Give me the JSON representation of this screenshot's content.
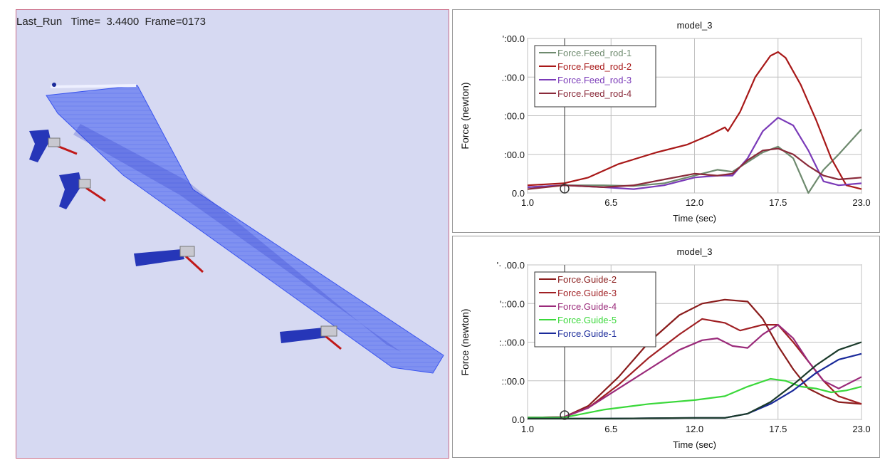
{
  "viewport": {
    "status": "Last_Run   Time=  3.4400  Frame=0173"
  },
  "colors": {
    "wing": "#3a55f0",
    "bracket": "#2636b8",
    "rod": "#c01818",
    "grid": "#c0c0c0"
  },
  "chart_data": [
    {
      "type": "line",
      "title": "model_3",
      "xlabel": "Time (sec)",
      "ylabel": "Force (newton)",
      "xlim": [
        1.0,
        23.0
      ],
      "ylim": [
        0.0,
        4000.0
      ],
      "x_ticks": [
        "1.0",
        "6.5",
        "12.0",
        "17.5",
        "23.0"
      ],
      "y_ticks": [
        "0.0",
        "1000.0",
        "2000.0",
        "3000.0",
        "4000.0"
      ],
      "y_tick_labels": [
        "0.0",
        ":00.0",
        ":00.0",
        ".:00.0",
        "':00.0"
      ],
      "grid": true,
      "legend": "top-left",
      "cursor_x": 3.44,
      "series": [
        {
          "name": "Force.Feed_rod-1",
          "color": "#6e8a6e",
          "x": [
            1,
            3.4,
            6,
            8,
            10,
            12,
            13.5,
            14.5,
            15.5,
            16.5,
            17.5,
            18.5,
            19.5,
            20.5,
            21.5,
            23
          ],
          "y": [
            150,
            200,
            200,
            180,
            250,
            450,
            600,
            550,
            800,
            1050,
            1200,
            900,
            0,
            600,
            1000,
            1650
          ]
        },
        {
          "name": "Force.Feed_rod-2",
          "color": "#a81818",
          "x": [
            1,
            3.4,
            5,
            7,
            9.5,
            11.5,
            13,
            14,
            14.2,
            15,
            16,
            17,
            17.5,
            18,
            19,
            20,
            21,
            22,
            23
          ],
          "y": [
            200,
            250,
            400,
            750,
            1050,
            1250,
            1500,
            1700,
            1600,
            2100,
            3000,
            3550,
            3650,
            3500,
            2800,
            1900,
            900,
            200,
            100
          ]
        },
        {
          "name": "Force.Feed_rod-3",
          "color": "#7a3ab8",
          "x": [
            1,
            3.4,
            6,
            8,
            10,
            12,
            13.5,
            14.5,
            15.5,
            16.5,
            17.5,
            18.5,
            19.5,
            20.5,
            21.5,
            23
          ],
          "y": [
            150,
            200,
            150,
            100,
            200,
            400,
            450,
            450,
            900,
            1600,
            1950,
            1750,
            1100,
            300,
            200,
            250
          ]
        },
        {
          "name": "Force.Feed_rod-4",
          "color": "#8a2a3a",
          "x": [
            1,
            3.4,
            6,
            8,
            10,
            12,
            13.5,
            14.5,
            15.5,
            16.5,
            17.5,
            18.5,
            19.5,
            20.5,
            21.5,
            23
          ],
          "y": [
            100,
            200,
            150,
            200,
            350,
            500,
            450,
            500,
            850,
            1100,
            1150,
            1000,
            700,
            450,
            350,
            400
          ]
        }
      ]
    },
    {
      "type": "line",
      "title": "model_3",
      "xlabel": "Time (sec)",
      "ylabel": "Force (newton)",
      "xlim": [
        1.0,
        23.0
      ],
      "ylim": [
        0.0,
        4000.0
      ],
      "x_ticks": [
        "1.0",
        "6.5",
        "12.0",
        "17.5",
        "23.0"
      ],
      "y_ticks": [
        "0.0",
        "1000.0",
        "2000.0",
        "3000.0",
        "4000.0"
      ],
      "y_tick_labels": [
        "0.0",
        "::00.0",
        ":.:00.0",
        "'::00.0",
        "'· .00.0"
      ],
      "grid": true,
      "legend": "top-left",
      "cursor_x": 3.44,
      "series": [
        {
          "name": "Force.Guide-2",
          "color": "#8a1c1c",
          "x": [
            1,
            3.4,
            5,
            7,
            9,
            11,
            12.5,
            14,
            15.5,
            16.5,
            17.5,
            18.5,
            19.5,
            20.5,
            21.5,
            23
          ],
          "y": [
            50,
            60,
            350,
            1100,
            2000,
            2700,
            3000,
            3100,
            3050,
            2600,
            1900,
            1300,
            800,
            600,
            450,
            400
          ]
        },
        {
          "name": "Force.Guide-3",
          "color": "#a02024",
          "x": [
            1,
            3.4,
            5,
            7,
            9,
            11,
            12.5,
            14,
            15,
            16.5,
            17.5,
            18.5,
            19.5,
            20.5,
            21.5,
            23
          ],
          "y": [
            50,
            60,
            300,
            900,
            1600,
            2200,
            2600,
            2500,
            2300,
            2450,
            2450,
            2000,
            1500,
            1000,
            600,
            400
          ]
        },
        {
          "name": "Force.Guide-4",
          "color": "#9a2a7a",
          "x": [
            1,
            3.4,
            5,
            7,
            9,
            11,
            12.5,
            13.5,
            14.5,
            15.5,
            16.5,
            17.5,
            18.5,
            19.5,
            20.5,
            21.5,
            23
          ],
          "y": [
            50,
            60,
            300,
            800,
            1300,
            1800,
            2050,
            2100,
            1900,
            1850,
            2200,
            2450,
            2100,
            1500,
            1000,
            800,
            1100
          ]
        },
        {
          "name": "Force.Guide-5",
          "color": "#3ad83a",
          "x": [
            1,
            3.4,
            6,
            9,
            12,
            14,
            15.5,
            17,
            18,
            19,
            20,
            21,
            22,
            23
          ],
          "y": [
            50,
            50,
            250,
            400,
            500,
            600,
            850,
            1050,
            1000,
            850,
            800,
            700,
            750,
            850
          ]
        },
        {
          "name": "Force.Guide-1",
          "color": "#1a2a9a",
          "x": [
            1,
            3.4,
            6,
            9,
            12,
            14,
            15.5,
            17,
            18.5,
            20,
            21.5,
            23
          ],
          "y": [
            20,
            20,
            20,
            30,
            40,
            40,
            150,
            400,
            750,
            1200,
            1550,
            1700
          ]
        },
        {
          "name": "",
          "color": "#1a3a2a",
          "x": [
            1,
            3.4,
            6,
            9,
            12,
            14,
            15.5,
            17,
            18.5,
            20,
            21.5,
            23
          ],
          "y": [
            20,
            20,
            20,
            30,
            40,
            40,
            150,
            450,
            900,
            1400,
            1800,
            2000
          ]
        }
      ]
    }
  ]
}
